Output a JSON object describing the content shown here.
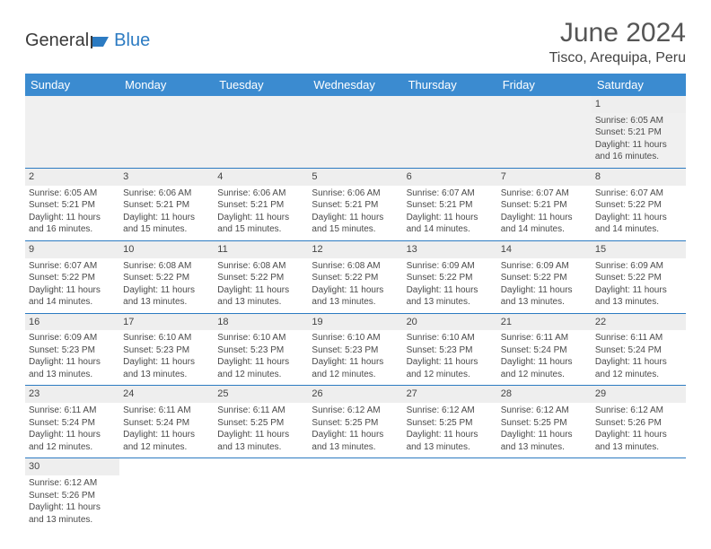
{
  "logo": {
    "part1": "General",
    "part2": "Blue"
  },
  "title": "June 2024",
  "location": "Tisco, Arequipa, Peru",
  "day_headers": [
    "Sunday",
    "Monday",
    "Tuesday",
    "Wednesday",
    "Thursday",
    "Friday",
    "Saturday"
  ],
  "colors": {
    "header_bg": "#3b8bd0",
    "header_fg": "#ffffff",
    "accent": "#2c7bc2",
    "daynum_bg": "#eeeeee",
    "text": "#4a4a4a"
  },
  "weeks": [
    [
      null,
      null,
      null,
      null,
      null,
      null,
      {
        "n": "1",
        "sr": "Sunrise: 6:05 AM",
        "ss": "Sunset: 5:21 PM",
        "d1": "Daylight: 11 hours",
        "d2": "and 16 minutes."
      }
    ],
    [
      {
        "n": "2",
        "sr": "Sunrise: 6:05 AM",
        "ss": "Sunset: 5:21 PM",
        "d1": "Daylight: 11 hours",
        "d2": "and 16 minutes."
      },
      {
        "n": "3",
        "sr": "Sunrise: 6:06 AM",
        "ss": "Sunset: 5:21 PM",
        "d1": "Daylight: 11 hours",
        "d2": "and 15 minutes."
      },
      {
        "n": "4",
        "sr": "Sunrise: 6:06 AM",
        "ss": "Sunset: 5:21 PM",
        "d1": "Daylight: 11 hours",
        "d2": "and 15 minutes."
      },
      {
        "n": "5",
        "sr": "Sunrise: 6:06 AM",
        "ss": "Sunset: 5:21 PM",
        "d1": "Daylight: 11 hours",
        "d2": "and 15 minutes."
      },
      {
        "n": "6",
        "sr": "Sunrise: 6:07 AM",
        "ss": "Sunset: 5:21 PM",
        "d1": "Daylight: 11 hours",
        "d2": "and 14 minutes."
      },
      {
        "n": "7",
        "sr": "Sunrise: 6:07 AM",
        "ss": "Sunset: 5:21 PM",
        "d1": "Daylight: 11 hours",
        "d2": "and 14 minutes."
      },
      {
        "n": "8",
        "sr": "Sunrise: 6:07 AM",
        "ss": "Sunset: 5:22 PM",
        "d1": "Daylight: 11 hours",
        "d2": "and 14 minutes."
      }
    ],
    [
      {
        "n": "9",
        "sr": "Sunrise: 6:07 AM",
        "ss": "Sunset: 5:22 PM",
        "d1": "Daylight: 11 hours",
        "d2": "and 14 minutes."
      },
      {
        "n": "10",
        "sr": "Sunrise: 6:08 AM",
        "ss": "Sunset: 5:22 PM",
        "d1": "Daylight: 11 hours",
        "d2": "and 13 minutes."
      },
      {
        "n": "11",
        "sr": "Sunrise: 6:08 AM",
        "ss": "Sunset: 5:22 PM",
        "d1": "Daylight: 11 hours",
        "d2": "and 13 minutes."
      },
      {
        "n": "12",
        "sr": "Sunrise: 6:08 AM",
        "ss": "Sunset: 5:22 PM",
        "d1": "Daylight: 11 hours",
        "d2": "and 13 minutes."
      },
      {
        "n": "13",
        "sr": "Sunrise: 6:09 AM",
        "ss": "Sunset: 5:22 PM",
        "d1": "Daylight: 11 hours",
        "d2": "and 13 minutes."
      },
      {
        "n": "14",
        "sr": "Sunrise: 6:09 AM",
        "ss": "Sunset: 5:22 PM",
        "d1": "Daylight: 11 hours",
        "d2": "and 13 minutes."
      },
      {
        "n": "15",
        "sr": "Sunrise: 6:09 AM",
        "ss": "Sunset: 5:22 PM",
        "d1": "Daylight: 11 hours",
        "d2": "and 13 minutes."
      }
    ],
    [
      {
        "n": "16",
        "sr": "Sunrise: 6:09 AM",
        "ss": "Sunset: 5:23 PM",
        "d1": "Daylight: 11 hours",
        "d2": "and 13 minutes."
      },
      {
        "n": "17",
        "sr": "Sunrise: 6:10 AM",
        "ss": "Sunset: 5:23 PM",
        "d1": "Daylight: 11 hours",
        "d2": "and 13 minutes."
      },
      {
        "n": "18",
        "sr": "Sunrise: 6:10 AM",
        "ss": "Sunset: 5:23 PM",
        "d1": "Daylight: 11 hours",
        "d2": "and 12 minutes."
      },
      {
        "n": "19",
        "sr": "Sunrise: 6:10 AM",
        "ss": "Sunset: 5:23 PM",
        "d1": "Daylight: 11 hours",
        "d2": "and 12 minutes."
      },
      {
        "n": "20",
        "sr": "Sunrise: 6:10 AM",
        "ss": "Sunset: 5:23 PM",
        "d1": "Daylight: 11 hours",
        "d2": "and 12 minutes."
      },
      {
        "n": "21",
        "sr": "Sunrise: 6:11 AM",
        "ss": "Sunset: 5:24 PM",
        "d1": "Daylight: 11 hours",
        "d2": "and 12 minutes."
      },
      {
        "n": "22",
        "sr": "Sunrise: 6:11 AM",
        "ss": "Sunset: 5:24 PM",
        "d1": "Daylight: 11 hours",
        "d2": "and 12 minutes."
      }
    ],
    [
      {
        "n": "23",
        "sr": "Sunrise: 6:11 AM",
        "ss": "Sunset: 5:24 PM",
        "d1": "Daylight: 11 hours",
        "d2": "and 12 minutes."
      },
      {
        "n": "24",
        "sr": "Sunrise: 6:11 AM",
        "ss": "Sunset: 5:24 PM",
        "d1": "Daylight: 11 hours",
        "d2": "and 12 minutes."
      },
      {
        "n": "25",
        "sr": "Sunrise: 6:11 AM",
        "ss": "Sunset: 5:25 PM",
        "d1": "Daylight: 11 hours",
        "d2": "and 13 minutes."
      },
      {
        "n": "26",
        "sr": "Sunrise: 6:12 AM",
        "ss": "Sunset: 5:25 PM",
        "d1": "Daylight: 11 hours",
        "d2": "and 13 minutes."
      },
      {
        "n": "27",
        "sr": "Sunrise: 6:12 AM",
        "ss": "Sunset: 5:25 PM",
        "d1": "Daylight: 11 hours",
        "d2": "and 13 minutes."
      },
      {
        "n": "28",
        "sr": "Sunrise: 6:12 AM",
        "ss": "Sunset: 5:25 PM",
        "d1": "Daylight: 11 hours",
        "d2": "and 13 minutes."
      },
      {
        "n": "29",
        "sr": "Sunrise: 6:12 AM",
        "ss": "Sunset: 5:26 PM",
        "d1": "Daylight: 11 hours",
        "d2": "and 13 minutes."
      }
    ],
    [
      {
        "n": "30",
        "sr": "Sunrise: 6:12 AM",
        "ss": "Sunset: 5:26 PM",
        "d1": "Daylight: 11 hours",
        "d2": "and 13 minutes."
      },
      null,
      null,
      null,
      null,
      null,
      null
    ]
  ]
}
